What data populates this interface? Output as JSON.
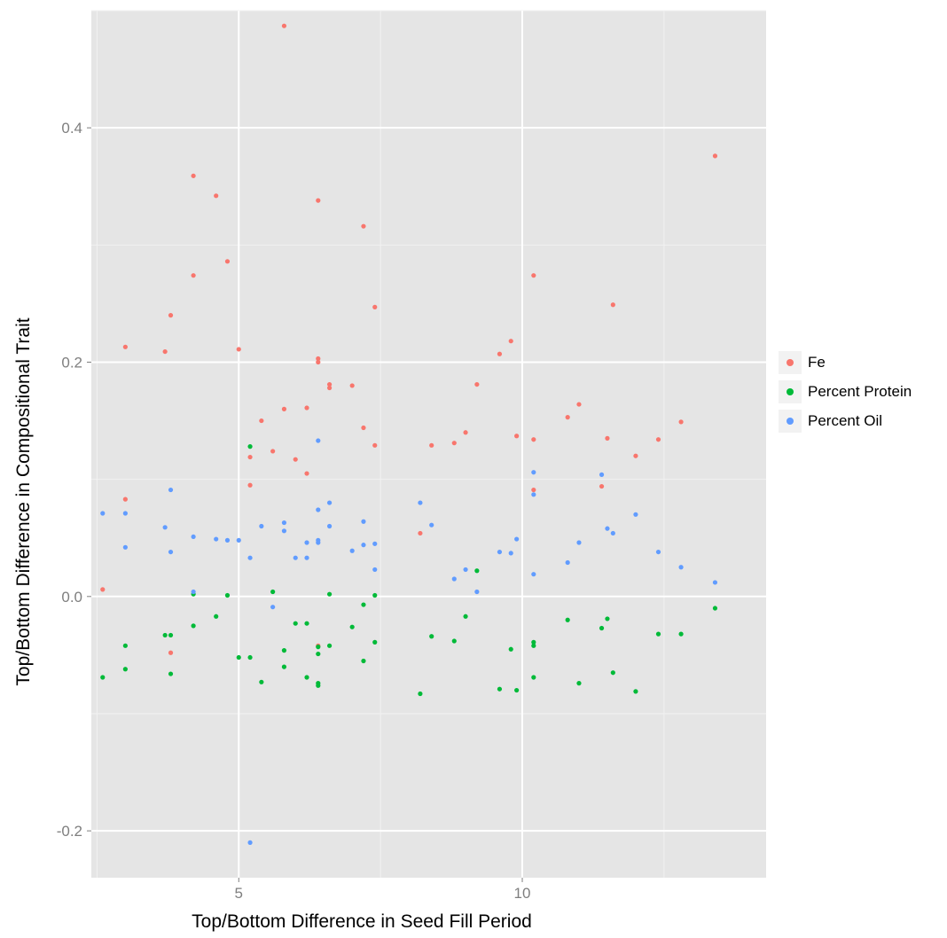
{
  "chart_data": {
    "type": "scatter",
    "title": "",
    "xlabel": "Top/Bottom Difference in Seed Fill Period",
    "ylabel": "Top/Bottom Difference in Compositional Trait",
    "xlim": [
      2.4,
      14.3
    ],
    "ylim": [
      -0.24,
      0.5
    ],
    "x_ticks": [
      5,
      10
    ],
    "x_tick_labels": [
      "5",
      "10"
    ],
    "y_ticks": [
      -0.2,
      0.0,
      0.2,
      0.4
    ],
    "y_tick_labels": [
      "-0.2",
      "0.0",
      "0.2",
      "0.4"
    ],
    "grid": true,
    "legend_position": "right",
    "panel_background": "#e5e5e5",
    "grid_color": "#ffffff",
    "series": [
      {
        "name": "Fe",
        "color": "#f8766d",
        "points": [
          [
            5.8,
            0.487
          ],
          [
            13.4,
            0.376
          ],
          [
            4.2,
            0.359
          ],
          [
            4.6,
            0.342
          ],
          [
            6.4,
            0.338
          ],
          [
            7.2,
            0.316
          ],
          [
            4.8,
            0.286
          ],
          [
            4.2,
            0.274
          ],
          [
            10.2,
            0.274
          ],
          [
            11.6,
            0.249
          ],
          [
            7.4,
            0.247
          ],
          [
            3.8,
            0.24
          ],
          [
            3.0,
            0.213
          ],
          [
            5.0,
            0.211
          ],
          [
            3.7,
            0.209
          ],
          [
            9.8,
            0.218
          ],
          [
            9.6,
            0.207
          ],
          [
            6.4,
            0.203
          ],
          [
            6.4,
            0.2
          ],
          [
            9.2,
            0.181
          ],
          [
            6.6,
            0.181
          ],
          [
            7.0,
            0.18
          ],
          [
            6.6,
            0.178
          ],
          [
            11.0,
            0.164
          ],
          [
            5.8,
            0.16
          ],
          [
            6.2,
            0.161
          ],
          [
            10.8,
            0.153
          ],
          [
            5.4,
            0.15
          ],
          [
            12.8,
            0.149
          ],
          [
            7.2,
            0.144
          ],
          [
            9.0,
            0.14
          ],
          [
            9.9,
            0.137
          ],
          [
            11.5,
            0.135
          ],
          [
            10.2,
            0.134
          ],
          [
            12.4,
            0.134
          ],
          [
            8.4,
            0.129
          ],
          [
            8.8,
            0.131
          ],
          [
            7.4,
            0.129
          ],
          [
            5.6,
            0.124
          ],
          [
            12.0,
            0.12
          ],
          [
            5.2,
            0.119
          ],
          [
            6.0,
            0.117
          ],
          [
            6.2,
            0.105
          ],
          [
            5.2,
            0.095
          ],
          [
            11.4,
            0.094
          ],
          [
            10.2,
            0.091
          ],
          [
            3.0,
            0.083
          ],
          [
            8.2,
            0.054
          ],
          [
            2.6,
            0.006
          ],
          [
            3.8,
            -0.048
          ],
          [
            6.4,
            -0.042
          ]
        ]
      },
      {
        "name": "Percent Protein",
        "color": "#00ba38",
        "points": [
          [
            5.2,
            0.128
          ],
          [
            9.2,
            0.022
          ],
          [
            4.2,
            0.002
          ],
          [
            4.8,
            0.001
          ],
          [
            5.6,
            0.004
          ],
          [
            6.6,
            0.002
          ],
          [
            7.4,
            0.001
          ],
          [
            7.2,
            -0.007
          ],
          [
            13.4,
            -0.01
          ],
          [
            4.6,
            -0.017
          ],
          [
            9.0,
            -0.017
          ],
          [
            11.5,
            -0.019
          ],
          [
            10.8,
            -0.02
          ],
          [
            6.0,
            -0.023
          ],
          [
            6.2,
            -0.023
          ],
          [
            4.2,
            -0.025
          ],
          [
            7.0,
            -0.026
          ],
          [
            11.4,
            -0.027
          ],
          [
            12.4,
            -0.032
          ],
          [
            12.8,
            -0.032
          ],
          [
            3.7,
            -0.033
          ],
          [
            3.8,
            -0.033
          ],
          [
            8.4,
            -0.034
          ],
          [
            8.8,
            -0.038
          ],
          [
            7.4,
            -0.039
          ],
          [
            10.2,
            -0.039
          ],
          [
            3.0,
            -0.042
          ],
          [
            6.6,
            -0.042
          ],
          [
            10.2,
            -0.042
          ],
          [
            6.4,
            -0.043
          ],
          [
            5.8,
            -0.046
          ],
          [
            9.8,
            -0.045
          ],
          [
            6.4,
            -0.049
          ],
          [
            5.0,
            -0.052
          ],
          [
            5.2,
            -0.052
          ],
          [
            7.2,
            -0.055
          ],
          [
            5.8,
            -0.06
          ],
          [
            3.0,
            -0.062
          ],
          [
            3.8,
            -0.066
          ],
          [
            11.6,
            -0.065
          ],
          [
            2.6,
            -0.069
          ],
          [
            6.2,
            -0.069
          ],
          [
            10.2,
            -0.069
          ],
          [
            5.4,
            -0.073
          ],
          [
            6.4,
            -0.074
          ],
          [
            6.4,
            -0.076
          ],
          [
            11.0,
            -0.074
          ],
          [
            9.6,
            -0.079
          ],
          [
            9.9,
            -0.08
          ],
          [
            12.0,
            -0.081
          ],
          [
            8.2,
            -0.083
          ]
        ]
      },
      {
        "name": "Percent Oil",
        "color": "#619cff",
        "points": [
          [
            6.4,
            0.133
          ],
          [
            10.2,
            0.106
          ],
          [
            11.4,
            0.104
          ],
          [
            3.8,
            0.091
          ],
          [
            10.2,
            0.087
          ],
          [
            6.6,
            0.08
          ],
          [
            8.2,
            0.08
          ],
          [
            6.4,
            0.074
          ],
          [
            2.6,
            0.071
          ],
          [
            3.0,
            0.071
          ],
          [
            12.0,
            0.07
          ],
          [
            5.8,
            0.063
          ],
          [
            7.2,
            0.064
          ],
          [
            8.4,
            0.061
          ],
          [
            5.4,
            0.06
          ],
          [
            6.6,
            0.06
          ],
          [
            3.7,
            0.059
          ],
          [
            11.5,
            0.058
          ],
          [
            5.8,
            0.056
          ],
          [
            11.6,
            0.054
          ],
          [
            4.2,
            0.051
          ],
          [
            4.6,
            0.049
          ],
          [
            5.0,
            0.048
          ],
          [
            4.8,
            0.048
          ],
          [
            6.4,
            0.048
          ],
          [
            6.4,
            0.046
          ],
          [
            9.9,
            0.049
          ],
          [
            6.2,
            0.046
          ],
          [
            11.0,
            0.046
          ],
          [
            7.2,
            0.044
          ],
          [
            7.4,
            0.045
          ],
          [
            3.0,
            0.042
          ],
          [
            3.8,
            0.038
          ],
          [
            7.0,
            0.039
          ],
          [
            9.6,
            0.038
          ],
          [
            9.8,
            0.037
          ],
          [
            12.4,
            0.038
          ],
          [
            5.2,
            0.033
          ],
          [
            6.0,
            0.033
          ],
          [
            6.2,
            0.033
          ],
          [
            10.8,
            0.029
          ],
          [
            12.8,
            0.025
          ],
          [
            9.0,
            0.023
          ],
          [
            7.4,
            0.023
          ],
          [
            10.2,
            0.019
          ],
          [
            8.8,
            0.015
          ],
          [
            13.4,
            0.012
          ],
          [
            4.2,
            0.004
          ],
          [
            9.2,
            0.004
          ],
          [
            5.6,
            -0.009
          ],
          [
            5.2,
            -0.21
          ]
        ]
      }
    ]
  }
}
